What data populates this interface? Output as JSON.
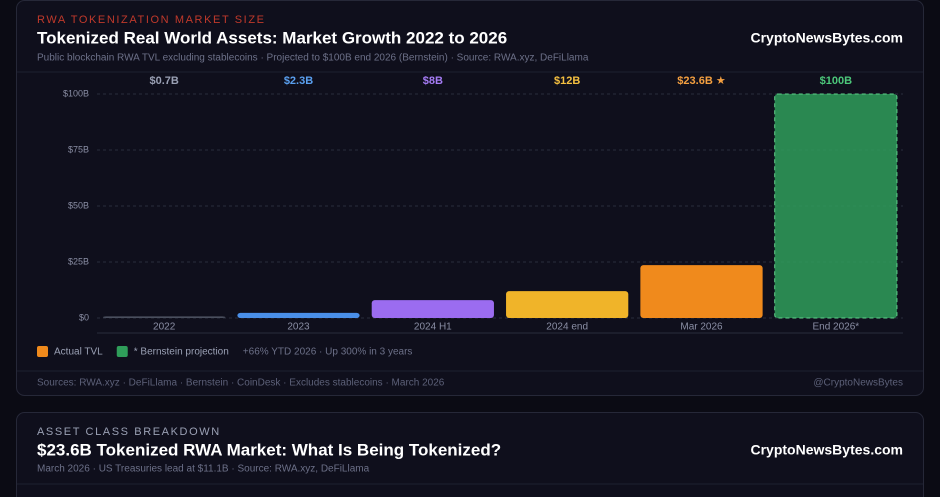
{
  "chart_data": {
    "type": "bar",
    "kicker": "RWA TOKENIZATION MARKET SIZE",
    "title": "Tokenized Real World Assets: Market Growth 2022 to 2026",
    "subtitle": "Public blockchain RWA TVL excluding stablecoins · Projected to $100B end 2026 (Bernstein) · Source: RWA.xyz, DeFiLlama",
    "brand": "CryptoNewsBytes.com",
    "categories": [
      "2022",
      "2023",
      "2024 H1",
      "2024 end",
      "Mar 2026",
      "End 2026*"
    ],
    "values": [
      0.7,
      2.3,
      8,
      12,
      23.6,
      100
    ],
    "value_labels": [
      "$0.7B",
      "$2.3B",
      "$8B",
      "$12B",
      "$23.6B ★",
      "$100B"
    ],
    "colors": [
      "#4a4f5e",
      "#4a8fe8",
      "#9b6cf0",
      "#f0b429",
      "#f08a1c",
      "#2f9e5a"
    ],
    "label_colors": [
      "#9aa0b4",
      "#5aa0f0",
      "#a57cf5",
      "#f5c040",
      "#f5a040",
      "#4cc77a"
    ],
    "ylim": [
      0,
      100
    ],
    "yticks": [
      {
        "value": 0,
        "label": "$0"
      },
      {
        "value": 25,
        "label": "$25B"
      },
      {
        "value": 50,
        "label": "$50B"
      },
      {
        "value": 75,
        "label": "$75B"
      },
      {
        "value": 100,
        "label": "$100B"
      }
    ],
    "grid": true,
    "legend": [
      {
        "name": "Actual TVL",
        "color": "#f08a1c"
      },
      {
        "name": "* Bernstein projection",
        "color": "#2f9e5a"
      }
    ],
    "note": "+66% YTD 2026 · Up 300% in 3 years",
    "footer_sources": "Sources: RWA.xyz · DeFiLlama · Bernstein · CoinDesk · Excludes stablecoins · March 2026",
    "footer_handle": "@CryptoNewsBytes"
  },
  "next_card": {
    "kicker": "ASSET CLASS BREAKDOWN",
    "title": "$23.6B Tokenized RWA Market: What Is Being Tokenized?",
    "subtitle": "March 2026 · US Treasuries lead at $11.1B · Source: RWA.xyz, DeFiLlama",
    "brand": "CryptoNewsBytes.com"
  }
}
